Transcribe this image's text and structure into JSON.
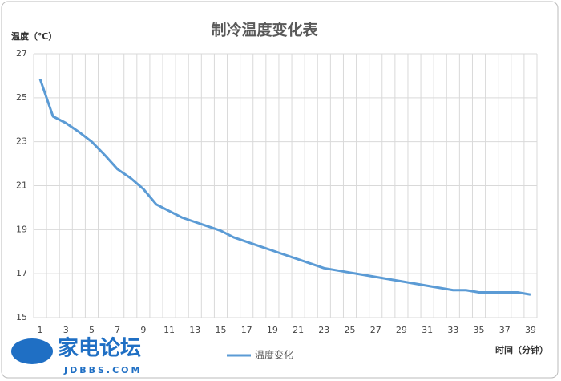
{
  "chart_data": {
    "type": "line",
    "title": "制冷温度变化表",
    "y_label": "温度（℃）",
    "x_label": "时间（分钟）",
    "categories": [
      "1",
      null,
      "3",
      null,
      "5",
      null,
      "7",
      null,
      "9",
      null,
      "11",
      null,
      "13",
      null,
      "15",
      null,
      "17",
      null,
      "19",
      null,
      "21",
      null,
      "23",
      null,
      "25",
      null,
      "27",
      null,
      "29",
      null,
      "31",
      null,
      "33",
      null,
      "35",
      null,
      "37",
      null,
      "39"
    ],
    "series": [
      {
        "name": "温度变化",
        "color": "#5b9bd5",
        "values": [
          25.85,
          24.15,
          23.85,
          23.45,
          23.0,
          22.4,
          21.75,
          21.35,
          20.85,
          20.15,
          19.85,
          19.55,
          19.35,
          19.15,
          18.95,
          18.65,
          18.45,
          18.25,
          18.05,
          17.85,
          17.65,
          17.45,
          17.25,
          17.15,
          17.05,
          16.95,
          16.85,
          16.75,
          16.65,
          16.55,
          16.45,
          16.35,
          16.25,
          16.25,
          16.15,
          16.15,
          16.15,
          16.15,
          16.05
        ]
      }
    ],
    "ylim": [
      15,
      27
    ],
    "yticks": [
      15,
      17,
      19,
      21,
      23,
      25,
      27
    ],
    "grid": true,
    "watermark": {
      "name": "家电论坛",
      "site": "JDBBS.COM"
    }
  }
}
